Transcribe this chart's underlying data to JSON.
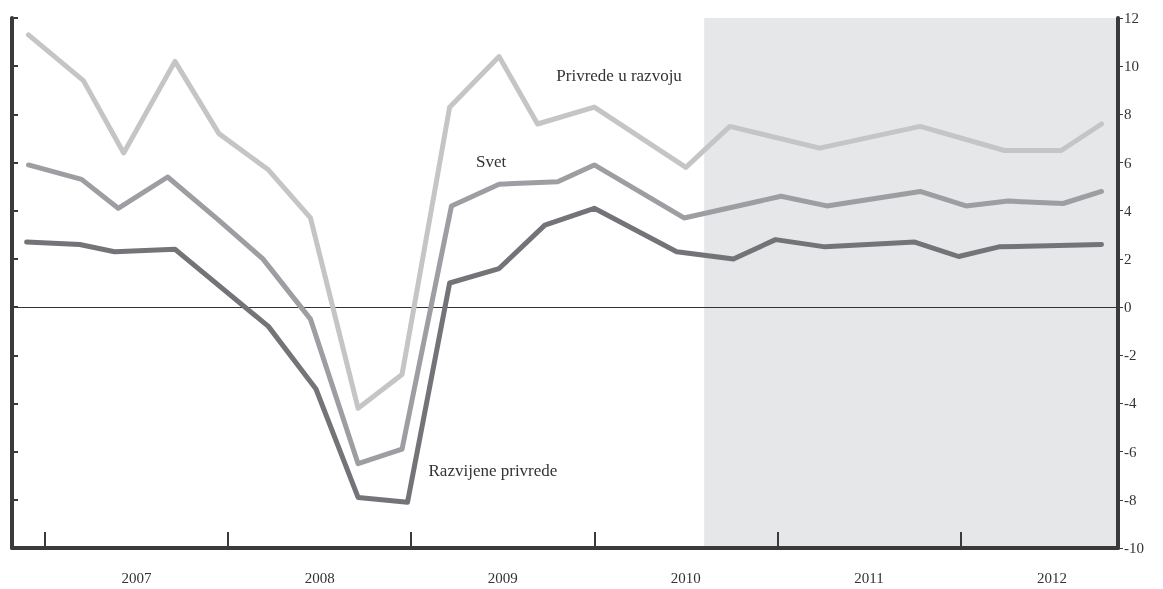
{
  "chart_data": {
    "type": "line",
    "xlim": [
      2006.82,
      2012.86
    ],
    "xticks": [
      {
        "value": 2007,
        "label": null
      },
      {
        "value": 2007.5,
        "label": "2007"
      },
      {
        "value": 2008,
        "label": null
      },
      {
        "value": 2008.5,
        "label": "2008"
      },
      {
        "value": 2009,
        "label": null
      },
      {
        "value": 2009.5,
        "label": "2009"
      },
      {
        "value": 2010,
        "label": null
      },
      {
        "value": 2010.5,
        "label": "2010"
      },
      {
        "value": 2011,
        "label": null
      },
      {
        "value": 2011.5,
        "label": "2011"
      },
      {
        "value": 2012,
        "label": null
      },
      {
        "value": 2012.5,
        "label": "2012"
      }
    ],
    "ylim": [
      -10,
      12
    ],
    "yticks": [
      -10,
      -8,
      -6,
      -4,
      -2,
      0,
      2,
      4,
      6,
      8,
      10,
      12
    ],
    "grid": false,
    "legend": false,
    "marker": "none",
    "line_style": "solid",
    "series": [
      {
        "name": "Privrede u razvoju",
        "color": "#c4c5c7",
        "x": [
          2006.91,
          2007.21,
          2007.43,
          2007.71,
          2007.95,
          2008.22,
          2008.45,
          2008.71,
          2008.95,
          2009.21,
          2009.48,
          2009.69,
          2010.0,
          2010.5,
          2010.74,
          2011.23,
          2011.78,
          2012.24,
          2012.55,
          2012.77
        ],
        "values": [
          11.3,
          9.4,
          6.4,
          10.2,
          7.2,
          5.7,
          3.7,
          -4.2,
          -2.8,
          8.3,
          10.4,
          7.6,
          8.3,
          5.8,
          7.5,
          6.6,
          7.5,
          6.5,
          6.5,
          7.6
        ]
      },
      {
        "name": "Svet",
        "color": "#9d9ea2",
        "x": [
          2006.91,
          2007.2,
          2007.4,
          2007.67,
          2007.95,
          2008.19,
          2008.45,
          2008.71,
          2008.95,
          2009.22,
          2009.48,
          2009.8,
          2010.0,
          2010.49,
          2011.02,
          2011.27,
          2011.78,
          2012.03,
          2012.26,
          2012.56,
          2012.77
        ],
        "values": [
          5.9,
          5.3,
          4.1,
          5.4,
          3.6,
          2.0,
          -0.5,
          -6.5,
          -5.9,
          4.2,
          5.1,
          5.2,
          5.9,
          3.7,
          4.6,
          4.2,
          4.8,
          4.2,
          4.4,
          4.3,
          4.8
        ]
      },
      {
        "name": "Razvijene privrede",
        "color": "#737478",
        "x": [
          2006.9,
          2007.19,
          2007.38,
          2007.71,
          2008.22,
          2008.48,
          2008.71,
          2008.98,
          2009.21,
          2009.48,
          2009.73,
          2010.0,
          2010.45,
          2010.76,
          2010.99,
          2011.26,
          2011.75,
          2011.99,
          2012.21,
          2012.77
        ],
        "values": [
          2.7,
          2.6,
          2.3,
          2.4,
          -0.8,
          -3.4,
          -7.9,
          -8.1,
          1.0,
          1.6,
          3.4,
          4.1,
          2.3,
          2.0,
          2.8,
          2.5,
          2.7,
          2.1,
          2.5,
          2.6
        ]
      }
    ],
    "ref_lines": [
      {
        "axis": "y",
        "value": 0,
        "color": "#333333"
      }
    ],
    "bands": [
      {
        "axis": "x",
        "from": 2010.6,
        "to": 2012.86,
        "color": "#e6e7e9"
      }
    ]
  }
}
